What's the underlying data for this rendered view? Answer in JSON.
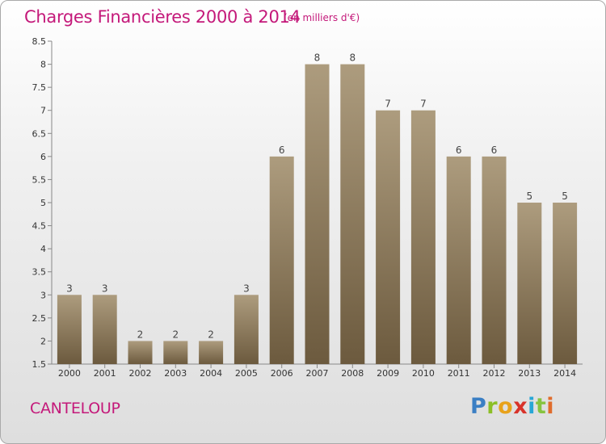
{
  "header": {
    "title": "Charges Financières 2000 à 2014",
    "subtitle": "(en milliers d'€)"
  },
  "footer": {
    "commune": "CANTELOUP",
    "logo_text": "Proxiti",
    "logo_letters": [
      "P",
      "r",
      "o",
      "x",
      "i",
      "t",
      "i"
    ]
  },
  "colors": {
    "title": "#c4197a",
    "bar_top": "#ad9c7e",
    "bar_bottom": "#6c5a3e",
    "axis": "#888888"
  },
  "chart_data": {
    "type": "bar",
    "title": "Charges Financières 2000 à 2014",
    "subtitle": "(en milliers d'€)",
    "categories": [
      "2000",
      "2001",
      "2002",
      "2003",
      "2004",
      "2005",
      "2006",
      "2007",
      "2008",
      "2009",
      "2010",
      "2011",
      "2012",
      "2013",
      "2014"
    ],
    "values": [
      3,
      3,
      2,
      2,
      2,
      3,
      6,
      8,
      8,
      7,
      7,
      6,
      6,
      5,
      5
    ],
    "data_labels": [
      "3",
      "3",
      "2",
      "2",
      "2",
      "3",
      "6",
      "8",
      "8",
      "7",
      "7",
      "6",
      "6",
      "5",
      "5"
    ],
    "ylim": [
      1.5,
      8.5
    ],
    "yticks": [
      "1.5",
      "2",
      "2.5",
      "3",
      "3.5",
      "4",
      "4.5",
      "5",
      "5.5",
      "6",
      "6.5",
      "7",
      "7.5",
      "8",
      "8.5"
    ],
    "grid": false,
    "legend": "none"
  }
}
